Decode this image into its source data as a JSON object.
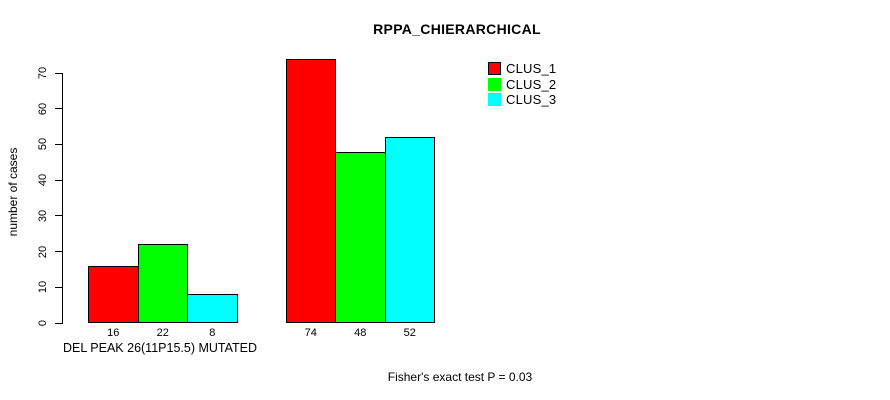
{
  "title": "RPPA_CHIERARCHICAL",
  "legend": {
    "items": [
      {
        "label": "CLUS_1",
        "color": "#ff0000",
        "swatch_border": "#000000"
      },
      {
        "label": "CLUS_2",
        "color": "#00ff00",
        "swatch_border": null
      },
      {
        "label": "CLUS_3",
        "color": "#00ffff",
        "swatch_border": null
      }
    ]
  },
  "chart_data": {
    "type": "bar",
    "title": "RPPA_CHIERARCHICAL",
    "xlabel": "",
    "ylabel": "number of cases",
    "categories": [
      "DEL PEAK 26(11P15.5) MUTATED",
      ""
    ],
    "series": [
      {
        "name": "CLUS_1",
        "color": "#ff0000",
        "values": [
          16,
          74
        ]
      },
      {
        "name": "CLUS_2",
        "color": "#00ff00",
        "values": [
          22,
          48
        ]
      },
      {
        "name": "CLUS_3",
        "color": "#00ffff",
        "values": [
          8,
          52
        ]
      }
    ],
    "yticks": [
      0,
      10,
      20,
      30,
      40,
      50,
      60,
      70
    ],
    "ylim": [
      0,
      74
    ],
    "grid": false,
    "legend_position": "top-right",
    "bar_value_labels_shown": true,
    "annotation": "Fisher's exact test P = 0.03"
  }
}
